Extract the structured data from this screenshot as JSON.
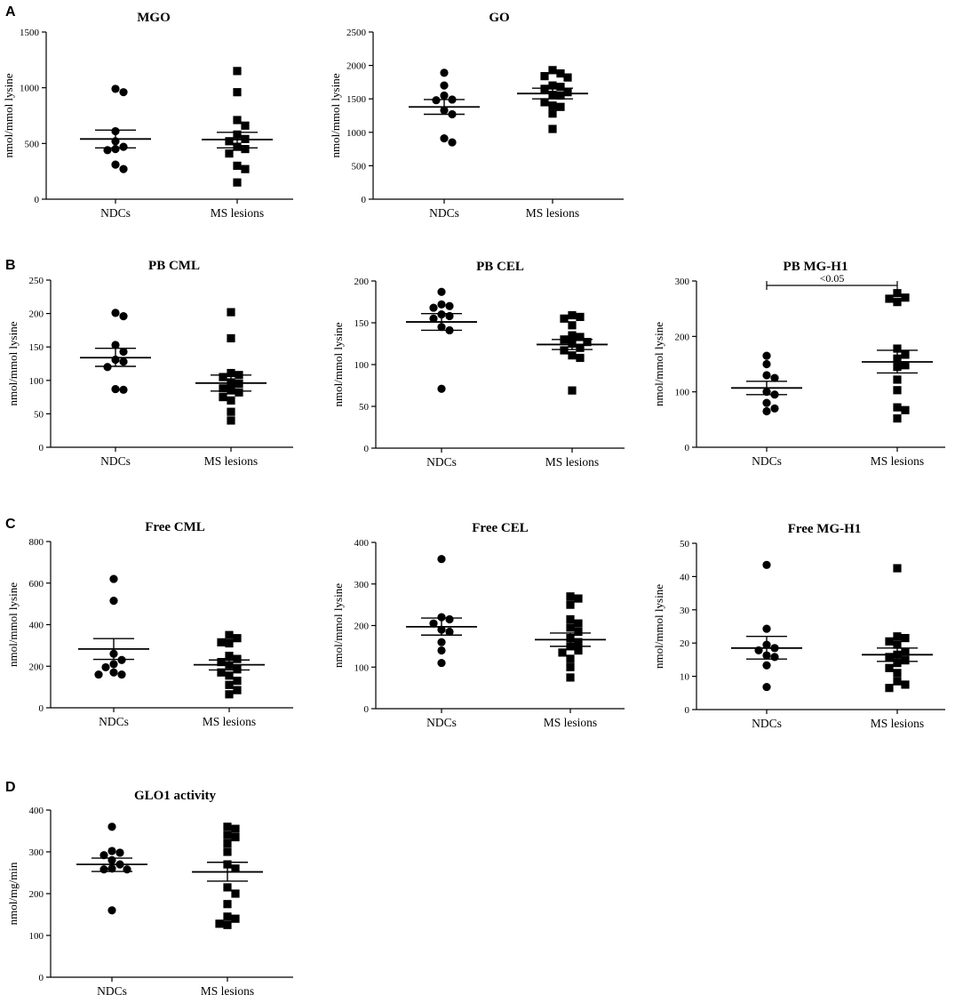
{
  "figure": {
    "panel_letters": [
      "A",
      "B",
      "C",
      "D"
    ]
  },
  "chart_data": [
    {
      "type": "scatter",
      "panel": "A",
      "title": "MGO",
      "ylabel": "nmol/mmol lysine",
      "ylim": [
        0,
        1500
      ],
      "yticks": [
        0,
        500,
        1000,
        1500
      ],
      "categories": [
        "NDCs",
        "MS lesions"
      ],
      "series": [
        {
          "name": "NDCs",
          "marker": "circle",
          "values": [
            990,
            960,
            610,
            520,
            470,
            450,
            440,
            310,
            270
          ],
          "mean": 540,
          "sem": [
            460,
            620
          ]
        },
        {
          "name": "MS lesions",
          "marker": "square",
          "values": [
            1150,
            960,
            710,
            660,
            580,
            540,
            520,
            470,
            450,
            410,
            300,
            270,
            150
          ],
          "mean": 535,
          "sem": [
            460,
            600
          ]
        }
      ]
    },
    {
      "type": "scatter",
      "panel": "A",
      "title": "GO",
      "ylabel": "nmol/mmol lysine",
      "ylim": [
        0,
        2500
      ],
      "yticks": [
        0,
        500,
        1000,
        1500,
        2000,
        2500
      ],
      "categories": [
        "NDCs",
        "MS lesions"
      ],
      "series": [
        {
          "name": "NDCs",
          "marker": "circle",
          "values": [
            1890,
            1700,
            1550,
            1490,
            1480,
            1330,
            1270,
            910,
            850
          ],
          "mean": 1380,
          "sem": [
            1270,
            1490
          ]
        },
        {
          "name": "MS lesions",
          "marker": "square",
          "values": [
            1930,
            1880,
            1840,
            1820,
            1700,
            1680,
            1650,
            1600,
            1560,
            1550,
            1450,
            1400,
            1380,
            1280,
            1050
          ],
          "mean": 1580,
          "sem": [
            1500,
            1660
          ]
        }
      ]
    },
    {
      "type": "scatter",
      "panel": "B",
      "title": "PB CML",
      "ylabel": "nmol/mmol lysine",
      "ylim": [
        0,
        250
      ],
      "yticks": [
        0,
        50,
        100,
        150,
        200,
        250
      ],
      "categories": [
        "NDCs",
        "MS lesions"
      ],
      "series": [
        {
          "name": "NDCs",
          "marker": "circle",
          "values": [
            201,
            196,
            153,
            143,
            131,
            128,
            120,
            87,
            86
          ],
          "mean": 134,
          "sem": [
            121,
            148
          ]
        },
        {
          "name": "MS lesions",
          "marker": "square",
          "values": [
            202,
            163,
            111,
            108,
            105,
            97,
            95,
            88,
            85,
            82,
            75,
            70,
            53,
            40
          ],
          "mean": 96,
          "sem": [
            84,
            108
          ]
        }
      ]
    },
    {
      "type": "scatter",
      "panel": "B",
      "title": "PB CEL",
      "ylabel": "nmol/mmol lysine",
      "ylim": [
        0,
        200
      ],
      "yticks": [
        0,
        50,
        100,
        150,
        200
      ],
      "categories": [
        "NDCs",
        "MS lesions"
      ],
      "series": [
        {
          "name": "NDCs",
          "marker": "circle",
          "values": [
            187,
            172,
            170,
            168,
            160,
            158,
            155,
            145,
            141,
            71
          ],
          "mean": 151,
          "sem": [
            141,
            161
          ]
        },
        {
          "name": "MS lesions",
          "marker": "square",
          "values": [
            159,
            157,
            155,
            147,
            135,
            133,
            130,
            127,
            125,
            120,
            117,
            111,
            108,
            69
          ],
          "mean": 124,
          "sem": [
            118,
            130
          ]
        }
      ]
    },
    {
      "type": "scatter",
      "panel": "B",
      "title": "PB MG-H1",
      "ylabel": "nmol/mmol lysine",
      "ylim": [
        0,
        300
      ],
      "yticks": [
        0,
        100,
        200,
        300
      ],
      "categories": [
        "NDCs",
        "MS lesions"
      ],
      "annotation": {
        "text": "<0.05",
        "between": [
          "NDCs",
          "MS lesions"
        ],
        "y": 292
      },
      "series": [
        {
          "name": "NDCs",
          "marker": "circle",
          "values": [
            165,
            150,
            130,
            125,
            100,
            95,
            80,
            70,
            65
          ],
          "mean": 107,
          "sem": [
            95,
            119
          ]
        },
        {
          "name": "MS lesions",
          "marker": "square",
          "values": [
            278,
            270,
            268,
            262,
            178,
            167,
            160,
            148,
            145,
            122,
            103,
            72,
            67,
            52
          ],
          "mean": 154,
          "sem": [
            134,
            175
          ]
        }
      ]
    },
    {
      "type": "scatter",
      "panel": "C",
      "title": "Free CML",
      "ylabel": "nmol/mmol lysine",
      "ylim": [
        0,
        800
      ],
      "yticks": [
        0,
        200,
        400,
        600,
        800
      ],
      "categories": [
        "NDCs",
        "MS lesions"
      ],
      "series": [
        {
          "name": "NDCs",
          "marker": "circle",
          "values": [
            620,
            515,
            260,
            230,
            210,
            195,
            170,
            160,
            160
          ],
          "mean": 283,
          "sem": [
            233,
            333
          ]
        },
        {
          "name": "MS lesions",
          "marker": "square",
          "values": [
            350,
            335,
            315,
            310,
            250,
            235,
            220,
            205,
            185,
            170,
            155,
            130,
            110,
            85,
            65
          ],
          "mean": 207,
          "sem": [
            182,
            230
          ]
        }
      ]
    },
    {
      "type": "scatter",
      "panel": "C",
      "title": "Free CEL",
      "ylabel": "nmol/mmol lysine",
      "ylim": [
        0,
        400
      ],
      "yticks": [
        0,
        100,
        200,
        300,
        400
      ],
      "categories": [
        "NDCs",
        "MS lesions"
      ],
      "series": [
        {
          "name": "NDCs",
          "marker": "circle",
          "values": [
            360,
            220,
            215,
            205,
            190,
            185,
            160,
            140,
            110
          ],
          "mean": 197,
          "sem": [
            177,
            218
          ]
        },
        {
          "name": "MS lesions",
          "marker": "square",
          "values": [
            270,
            265,
            250,
            215,
            205,
            195,
            185,
            170,
            160,
            150,
            140,
            135,
            120,
            100,
            75
          ],
          "mean": 166,
          "sem": [
            150,
            182
          ]
        }
      ]
    },
    {
      "type": "scatter",
      "panel": "C",
      "title": "Free MG-H1",
      "ylabel": "nmol/mmol lysine",
      "ylim": [
        0,
        50
      ],
      "yticks": [
        0,
        10,
        20,
        30,
        40,
        50
      ],
      "categories": [
        "NDCs",
        "MS lesions"
      ],
      "series": [
        {
          "name": "NDCs",
          "marker": "circle",
          "values": [
            43.5,
            24.3,
            19.5,
            18.5,
            17.8,
            16.3,
            15.8,
            13.3,
            6.8
          ],
          "mean": 18.5,
          "sem": [
            15.2,
            22
          ]
        },
        {
          "name": "MS lesions",
          "marker": "square",
          "values": [
            42.5,
            22,
            21.5,
            20.5,
            19.5,
            17.3,
            16.5,
            15.8,
            14.8,
            14,
            12.5,
            11,
            8.5,
            7.5,
            6.5
          ],
          "mean": 16.5,
          "sem": [
            14.5,
            18.5
          ]
        }
      ]
    },
    {
      "type": "scatter",
      "panel": "D",
      "title": "GLO1 activity",
      "ylabel": "nmol/mg/min",
      "ylim": [
        0,
        400
      ],
      "yticks": [
        0,
        100,
        200,
        300,
        400
      ],
      "categories": [
        "NDCs",
        "MS lesions"
      ],
      "series": [
        {
          "name": "NDCs",
          "marker": "circle",
          "values": [
            360,
            302,
            298,
            292,
            280,
            270,
            260,
            258,
            258,
            160
          ],
          "mean": 270,
          "sem": [
            253,
            285
          ]
        },
        {
          "name": "MS lesions",
          "marker": "square",
          "values": [
            360,
            355,
            340,
            335,
            320,
            300,
            270,
            260,
            215,
            200,
            175,
            145,
            140,
            128,
            125
          ],
          "mean": 252,
          "sem": [
            230,
            275
          ]
        }
      ]
    }
  ]
}
